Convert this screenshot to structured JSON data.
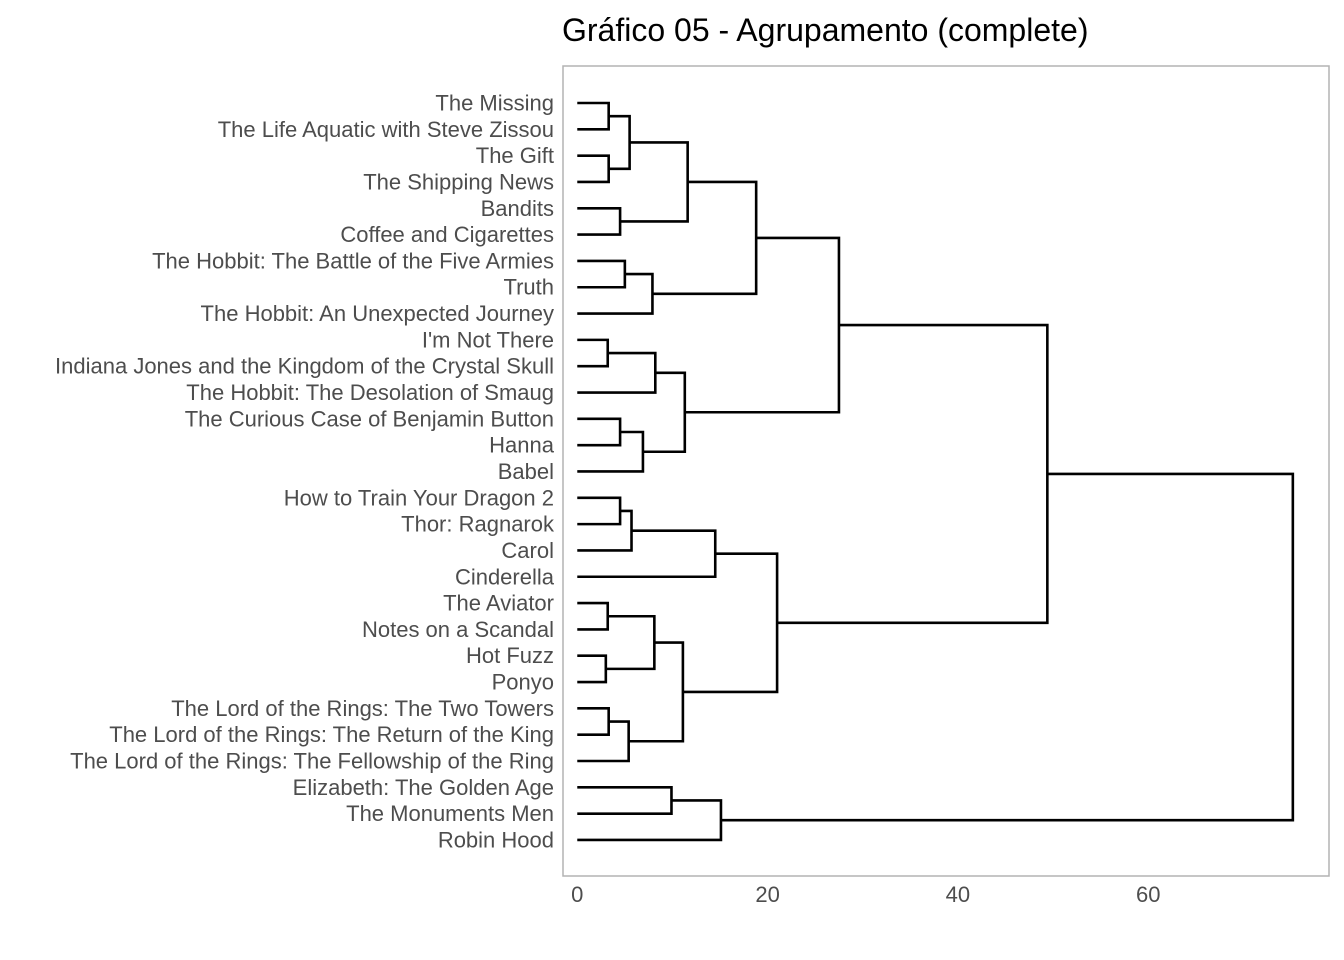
{
  "chart_data": {
    "type": "dendrogram",
    "title": "Gráfico 05 - Agrupamento (complete)",
    "xlabel": "",
    "ylabel": "",
    "orientation": "horizontal",
    "grid": false,
    "xlim": [
      -1.5,
      79
    ],
    "xticks": [
      0,
      20,
      40,
      60
    ],
    "leaves": [
      "The Missing",
      "The Life Aquatic with Steve Zissou",
      "The Gift",
      "The Shipping News",
      "Bandits",
      "Coffee and Cigarettes",
      "The Hobbit: The Battle of the Five Armies",
      "Truth",
      "The Hobbit: An Unexpected Journey",
      "I'm Not There",
      "Indiana Jones and the Kingdom of the Crystal Skull",
      "The Hobbit: The Desolation of Smaug",
      "The Curious Case of Benjamin Button",
      "Hanna",
      "Babel",
      "How to Train Your Dragon 2",
      "Thor: Ragnarok",
      "Carol",
      "Cinderella",
      "The Aviator",
      "Notes on a Scandal",
      "Hot Fuzz",
      "Ponyo",
      "The Lord of the Rings: The Two Towers",
      "The Lord of the Rings: The Return of the King",
      "The Lord of the Rings: The Fellowship of the Ring",
      "Elizabeth: The Golden Age",
      "The Monuments Men",
      "Robin Hood"
    ],
    "merges": [
      {
        "id": "m1",
        "children": [
          "L0",
          "L1"
        ],
        "height": 3.3
      },
      {
        "id": "m2",
        "children": [
          "L2",
          "L3"
        ],
        "height": 3.3
      },
      {
        "id": "m3",
        "children": [
          "m1",
          "m2"
        ],
        "height": 5.5
      },
      {
        "id": "m4",
        "children": [
          "L4",
          "L5"
        ],
        "height": 4.5
      },
      {
        "id": "m5",
        "children": [
          "m3",
          "m4"
        ],
        "height": 11.6
      },
      {
        "id": "m6",
        "children": [
          "L6",
          "L7"
        ],
        "height": 5.0
      },
      {
        "id": "m7",
        "children": [
          "m6",
          "L8"
        ],
        "height": 7.9
      },
      {
        "id": "m8",
        "children": [
          "m5",
          "m7"
        ],
        "height": 18.8
      },
      {
        "id": "m9",
        "children": [
          "L9",
          "L10"
        ],
        "height": 3.2
      },
      {
        "id": "m10",
        "children": [
          "m9",
          "L11"
        ],
        "height": 8.2
      },
      {
        "id": "m11",
        "children": [
          "L12",
          "L13"
        ],
        "height": 4.5
      },
      {
        "id": "m12",
        "children": [
          "m11",
          "L14"
        ],
        "height": 6.9
      },
      {
        "id": "m13",
        "children": [
          "m10",
          "m12"
        ],
        "height": 11.3
      },
      {
        "id": "m14",
        "children": [
          "m8",
          "m13"
        ],
        "height": 27.5
      },
      {
        "id": "m15",
        "children": [
          "L15",
          "L16"
        ],
        "height": 4.5
      },
      {
        "id": "m16",
        "children": [
          "m15",
          "L17"
        ],
        "height": 5.7
      },
      {
        "id": "m17",
        "children": [
          "m16",
          "L18"
        ],
        "height": 14.5
      },
      {
        "id": "m18",
        "children": [
          "L19",
          "L20"
        ],
        "height": 3.2
      },
      {
        "id": "m19",
        "children": [
          "L21",
          "L22"
        ],
        "height": 3.0
      },
      {
        "id": "m20",
        "children": [
          "m18",
          "m19"
        ],
        "height": 8.1
      },
      {
        "id": "m21",
        "children": [
          "L23",
          "L24"
        ],
        "height": 3.3
      },
      {
        "id": "m22",
        "children": [
          "m21",
          "L25"
        ],
        "height": 5.4
      },
      {
        "id": "m23",
        "children": [
          "m20",
          "m22"
        ],
        "height": 11.1
      },
      {
        "id": "m24",
        "children": [
          "m17",
          "m23"
        ],
        "height": 21.0
      },
      {
        "id": "m25",
        "children": [
          "m14",
          "m24"
        ],
        "height": 49.4
      },
      {
        "id": "m26",
        "children": [
          "L26",
          "L27"
        ],
        "height": 9.9
      },
      {
        "id": "m27",
        "children": [
          "m26",
          "L28"
        ],
        "height": 15.1
      },
      {
        "id": "m28",
        "children": [
          "m25",
          "m27"
        ],
        "height": 75.2
      }
    ]
  }
}
